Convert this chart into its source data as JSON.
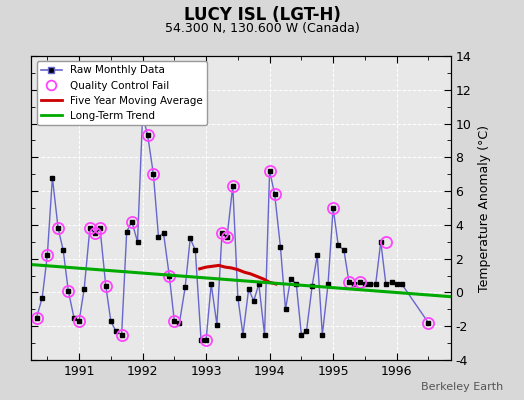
{
  "title": "LUCY ISL (LGT-H)",
  "subtitle": "54.300 N, 130.600 W (Canada)",
  "ylabel": "Temperature Anomaly (°C)",
  "watermark": "Berkeley Earth",
  "ylim": [
    -4,
    14
  ],
  "yticks": [
    -4,
    -2,
    0,
    2,
    4,
    6,
    8,
    10,
    12,
    14
  ],
  "xlim_start": 1990.25,
  "xlim_end": 1996.85,
  "xticks": [
    1991,
    1992,
    1993,
    1994,
    1995,
    1996
  ],
  "bg_color": "#d8d8d8",
  "plot_bg_color": "#e8e8e8",
  "raw_line_color": "#6666cc",
  "raw_marker_color": "#000000",
  "qc_marker_color": "#ff44ff",
  "moving_avg_color": "#cc0000",
  "trend_color": "#00aa00",
  "raw_data_x": [
    1990.33,
    1990.42,
    1990.5,
    1990.58,
    1990.67,
    1990.75,
    1990.83,
    1990.92,
    1991.0,
    1991.08,
    1991.17,
    1991.25,
    1991.33,
    1991.42,
    1991.5,
    1991.58,
    1991.67,
    1991.75,
    1991.83,
    1991.92,
    1992.0,
    1992.08,
    1992.17,
    1992.25,
    1992.33,
    1992.42,
    1992.5,
    1992.58,
    1992.67,
    1992.75,
    1992.83,
    1992.92,
    1993.0,
    1993.08,
    1993.17,
    1993.25,
    1993.33,
    1993.42,
    1993.5,
    1993.58,
    1993.67,
    1993.75,
    1993.83,
    1993.92,
    1994.0,
    1994.08,
    1994.17,
    1994.25,
    1994.33,
    1994.42,
    1994.5,
    1994.58,
    1994.67,
    1994.75,
    1994.83,
    1994.92,
    1995.0,
    1995.08,
    1995.17,
    1995.25,
    1995.33,
    1995.42,
    1995.5,
    1995.58,
    1995.67,
    1995.75,
    1995.83,
    1995.92,
    1996.0,
    1996.08,
    1996.5
  ],
  "raw_data_y": [
    -1.5,
    -0.3,
    2.2,
    6.8,
    3.8,
    2.5,
    0.1,
    -1.5,
    -1.7,
    0.2,
    3.8,
    3.5,
    3.8,
    0.4,
    -1.7,
    -2.3,
    -2.5,
    3.6,
    4.2,
    3.0,
    10.5,
    9.3,
    7.0,
    3.3,
    3.5,
    1.0,
    -1.7,
    -1.8,
    0.3,
    3.2,
    2.5,
    -2.8,
    -2.8,
    0.5,
    -1.9,
    3.5,
    3.3,
    6.3,
    -0.3,
    -2.5,
    0.2,
    -0.5,
    0.5,
    -2.5,
    7.2,
    5.8,
    2.7,
    -1.0,
    0.8,
    0.5,
    -2.5,
    -2.3,
    0.4,
    2.2,
    -2.5,
    0.5,
    5.0,
    2.8,
    2.5,
    0.6,
    0.5,
    0.6,
    0.5,
    0.5,
    0.5,
    3.0,
    0.5,
    0.6,
    0.5,
    0.5,
    -1.8
  ],
  "qc_fail_x": [
    1990.33,
    1990.5,
    1990.67,
    1990.83,
    1991.0,
    1991.17,
    1991.25,
    1991.33,
    1991.42,
    1991.67,
    1991.83,
    1992.0,
    1992.08,
    1992.17,
    1992.42,
    1992.5,
    1993.0,
    1993.25,
    1993.33,
    1993.42,
    1994.0,
    1994.08,
    1995.0,
    1995.25,
    1995.42,
    1995.83,
    1996.5
  ],
  "qc_fail_y": [
    -1.5,
    2.2,
    3.8,
    0.1,
    -1.7,
    3.8,
    3.5,
    3.8,
    0.4,
    -2.5,
    4.2,
    10.5,
    9.3,
    7.0,
    1.0,
    -1.7,
    -2.8,
    3.5,
    3.3,
    6.3,
    7.2,
    5.8,
    5.0,
    0.6,
    0.6,
    3.0,
    -1.8
  ],
  "moving_avg_x": [
    1992.9,
    1993.0,
    1993.1,
    1993.2,
    1993.3,
    1993.4,
    1993.5,
    1993.6,
    1993.7,
    1993.8,
    1993.9,
    1994.0,
    1994.1
  ],
  "moving_avg_y": [
    1.4,
    1.5,
    1.55,
    1.6,
    1.5,
    1.45,
    1.35,
    1.2,
    1.1,
    0.95,
    0.8,
    0.6,
    0.5
  ],
  "trend_x": [
    1990.25,
    1996.85
  ],
  "trend_y": [
    1.65,
    -0.25
  ]
}
